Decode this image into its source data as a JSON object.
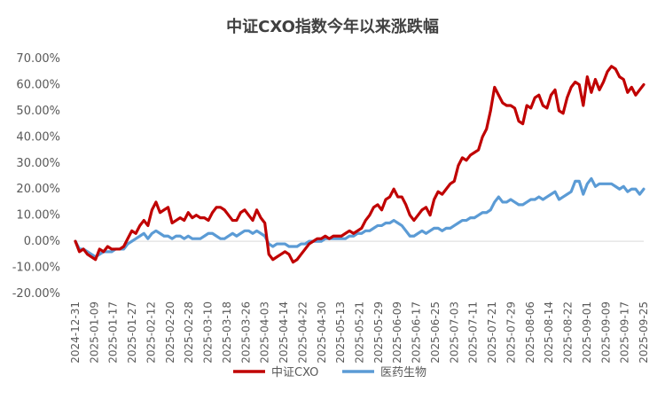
{
  "chart_data": {
    "type": "line",
    "title": "中证CXO指数今年以来涨跌幅",
    "xlabel": "",
    "ylabel": "",
    "ylim": [
      -20,
      70
    ],
    "yticks": [
      "70.00%",
      "60.00%",
      "50.00%",
      "40.00%",
      "30.00%",
      "20.00%",
      "10.00%",
      "0.00%",
      "-10.00%",
      "-20.00%"
    ],
    "x_tick_labels": [
      "2024-12-31",
      "2025-01-09",
      "2025-01-17",
      "2025-01-27",
      "2025-02-12",
      "2025-02-20",
      "2025-02-28",
      "2025-03-10",
      "2025-03-18",
      "2025-03-26",
      "2025-04-03",
      "2025-04-14",
      "2025-04-22",
      "2025-04-30",
      "2025-05-13",
      "2025-05-21",
      "2025-05-29",
      "2025-06-09",
      "2025-06-17",
      "2025-06-25",
      "2025-07-03",
      "2025-07-11",
      "2025-07-21",
      "2025-07-29",
      "2025-08-06",
      "2025-08-14",
      "2025-08-22",
      "2025-09-01",
      "2025-09-09",
      "2025-09-17",
      "2025-09-25"
    ],
    "legend_position": "bottom",
    "grid": false,
    "series": [
      {
        "name": "中证CXO",
        "color": "#C00000",
        "values": [
          0,
          -4,
          -3,
          -5,
          -6,
          -7,
          -3,
          -4,
          -2,
          -3,
          -3,
          -3,
          -2,
          1,
          4,
          3,
          6,
          8,
          6,
          12,
          15,
          11,
          12,
          13,
          7,
          8,
          9,
          8,
          11,
          9,
          10,
          9,
          9,
          8,
          11,
          13,
          13,
          12,
          10,
          8,
          8,
          11,
          12,
          10,
          8,
          12,
          9,
          7,
          -5,
          -7,
          -6,
          -5,
          -4,
          -5,
          -8,
          -7,
          -5,
          -3,
          -1,
          0,
          1,
          1,
          2,
          1,
          2,
          2,
          2,
          3,
          4,
          3,
          4,
          5,
          8,
          10,
          13,
          14,
          12,
          16,
          17,
          20,
          17,
          17,
          14,
          10,
          8,
          10,
          12,
          13,
          10,
          16,
          19,
          18,
          20,
          22,
          23,
          29,
          32,
          31,
          33,
          34,
          35,
          40,
          43,
          50,
          59,
          56,
          53,
          52,
          52,
          51,
          46,
          45,
          52,
          51,
          55,
          56,
          52,
          51,
          56,
          58,
          50,
          49,
          55,
          59,
          61,
          60,
          52,
          63,
          57,
          62,
          58,
          61,
          65,
          67,
          66,
          63,
          62,
          57,
          59,
          56,
          58,
          60
        ]
      },
      {
        "name": "医药生物",
        "color": "#5B9BD5",
        "values": [
          0,
          -3,
          -3,
          -4,
          -5,
          -6,
          -5,
          -4,
          -4,
          -4,
          -3,
          -3,
          -3,
          -1,
          0,
          1,
          2,
          3,
          1,
          3,
          4,
          3,
          2,
          2,
          1,
          2,
          2,
          1,
          2,
          1,
          1,
          1,
          2,
          3,
          3,
          2,
          1,
          1,
          2,
          3,
          2,
          3,
          4,
          4,
          3,
          4,
          3,
          2,
          -1,
          -2,
          -1,
          -1,
          -1,
          -2,
          -2,
          -2,
          -1,
          -1,
          0,
          0,
          0,
          0,
          1,
          1,
          1,
          1,
          1,
          1,
          2,
          2,
          3,
          3,
          4,
          4,
          5,
          6,
          6,
          7,
          7,
          8,
          7,
          6,
          4,
          2,
          2,
          3,
          4,
          3,
          4,
          5,
          5,
          4,
          5,
          5,
          6,
          7,
          8,
          8,
          9,
          9,
          10,
          11,
          11,
          12,
          15,
          17,
          15,
          15,
          16,
          15,
          14,
          14,
          15,
          16,
          16,
          17,
          16,
          17,
          18,
          19,
          16,
          17,
          18,
          19,
          23,
          23,
          18,
          22,
          24,
          21,
          22,
          22,
          22,
          22,
          21,
          20,
          21,
          19,
          20,
          20,
          18,
          20
        ]
      }
    ]
  }
}
